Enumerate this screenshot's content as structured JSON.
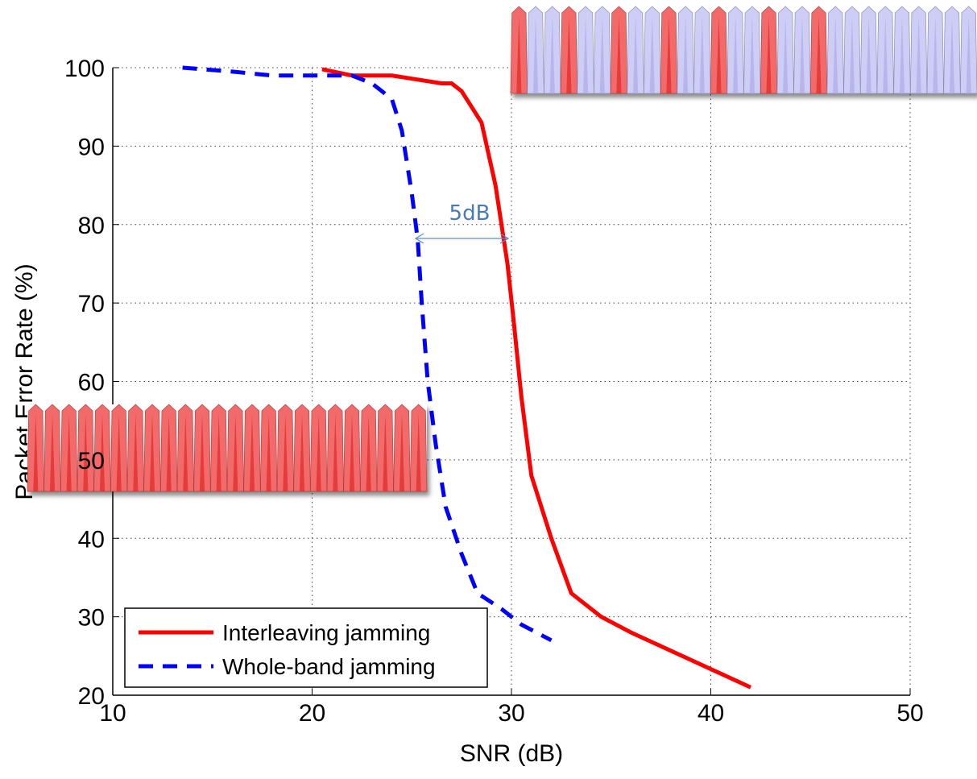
{
  "chart_data": {
    "type": "line",
    "xlabel": "SNR (dB)",
    "ylabel": "Packet Error Rate (%)",
    "xlim": [
      10,
      50
    ],
    "xticks": [
      10,
      20,
      30,
      40,
      50
    ],
    "ylim": [
      20,
      100
    ],
    "yticks": [
      20,
      30,
      40,
      50,
      60,
      70,
      80,
      90,
      100
    ],
    "grid": true,
    "legend": "lower left",
    "annotation": "5dB",
    "series": [
      {
        "name": "Interleaving jamming",
        "color": "#ff0000",
        "dash": "solid",
        "x": [
          20.5,
          22,
          24,
          26.5,
          27,
          27.5,
          28.5,
          29.2,
          29.8,
          30.1,
          30.5,
          31,
          31.5,
          32,
          33,
          34.5,
          36,
          42
        ],
        "values": [
          99.8,
          99,
          99,
          98,
          98,
          97,
          93,
          85,
          75,
          68,
          58,
          48,
          44,
          40,
          33,
          30,
          28,
          21
        ]
      },
      {
        "name": "Whole-band jamming",
        "color": "#0000ff",
        "dash": "dashed",
        "x": [
          13.5,
          16,
          18,
          22,
          23,
          24,
          24.5,
          25,
          25.3,
          25.5,
          25.8,
          26.2,
          26.7,
          27.5,
          28.3,
          29.5,
          30.5,
          32
        ],
        "values": [
          100,
          99.5,
          99,
          99,
          98,
          96,
          92,
          84,
          78,
          70,
          60,
          52,
          44,
          38,
          33,
          31,
          29,
          27
        ]
      }
    ]
  }
}
